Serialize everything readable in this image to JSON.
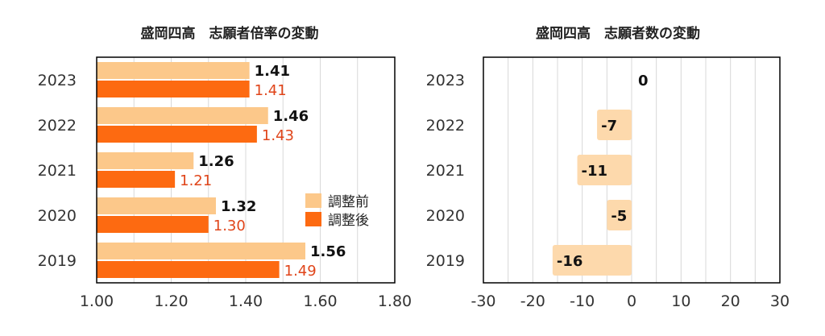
{
  "colors": {
    "pre": "#fcc88a",
    "post": "#fd6a11",
    "count": "#fdd9ac",
    "post_label": "#e0451a",
    "grid": "#d8d8d8",
    "frame": "#000000"
  },
  "chart_data": [
    {
      "type": "bar",
      "orientation": "horizontal",
      "title": "盛岡四高　志願者倍率の変動",
      "categories": [
        "2023",
        "2022",
        "2021",
        "2020",
        "2019"
      ],
      "series": [
        {
          "name": "調整前",
          "values": [
            1.41,
            1.46,
            1.26,
            1.32,
            1.56
          ],
          "labels": [
            "1.41",
            "1.46",
            "1.26",
            "1.32",
            "1.56"
          ]
        },
        {
          "name": "調整後",
          "values": [
            1.41,
            1.43,
            1.21,
            1.3,
            1.49
          ],
          "labels": [
            "1.41",
            "1.43",
            "1.21",
            "1.30",
            "1.49"
          ]
        }
      ],
      "xlim": [
        1.0,
        1.8
      ],
      "xticks": [
        1.0,
        1.2,
        1.4,
        1.6,
        1.8
      ],
      "xtick_labels": [
        "1.00",
        "1.20",
        "1.40",
        "1.60",
        "1.80"
      ],
      "grid": true,
      "legend": "right"
    },
    {
      "type": "bar",
      "orientation": "horizontal",
      "title": "盛岡四高　志願者数の変動",
      "categories": [
        "2023",
        "2022",
        "2021",
        "2020",
        "2019"
      ],
      "values": [
        0,
        -7,
        -11,
        -5,
        -16
      ],
      "labels": [
        "0",
        "-7",
        "-11",
        "-5",
        "-16"
      ],
      "xlim": [
        -30,
        30
      ],
      "xticks": [
        -30,
        -20,
        -10,
        0,
        10,
        20,
        30
      ],
      "xtick_labels": [
        "-30",
        "-20",
        "-10",
        "0",
        "10",
        "20",
        "30"
      ],
      "grid": true,
      "legend": "none"
    }
  ]
}
